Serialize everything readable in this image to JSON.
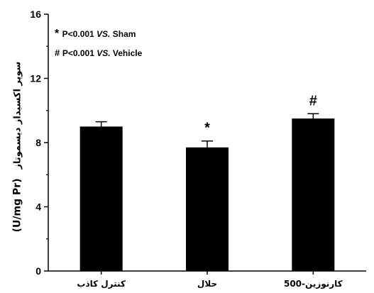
{
  "chart_data": {
    "type": "bar",
    "categories": [
      "كنترل كاذب",
      "حلال",
      "كارنوزين-500"
    ],
    "values": [
      9.0,
      7.7,
      9.5
    ],
    "errors": [
      0.3,
      0.4,
      0.3
    ],
    "significance_marks": [
      "",
      "*",
      "#"
    ],
    "ylabel_unit": "(U/mg Pr)",
    "ylabel_text": "سوپر اكسيداز ديسموتاز",
    "ylim": [
      0,
      16
    ],
    "yticks": [
      0,
      4,
      8,
      12,
      16
    ],
    "bar_color": "#000000",
    "legend": [
      {
        "symbol": "*",
        "text": "P<0.001",
        "italic": "VS.",
        "ref": "Sham"
      },
      {
        "symbol": "#",
        "text": "P<0.001",
        "italic": "VS.",
        "ref": "Vehicle"
      }
    ],
    "legend_placement": "top-left",
    "grid": false
  }
}
